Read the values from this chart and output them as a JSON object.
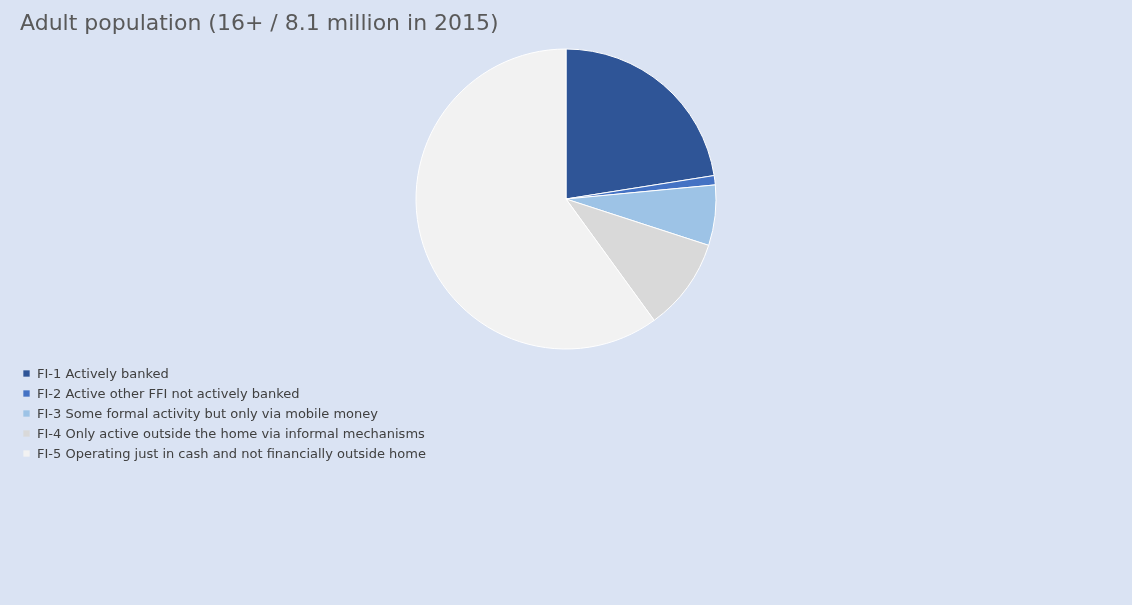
{
  "chart_data": {
    "type": "pie",
    "title": "Adult population (16+ / 8.1 million in 2015)",
    "categories": [
      "FI-1 Actively banked",
      "FI-2 Active other FFI not actively banked",
      "FI-3 Some formal activity but only via mobile money",
      "FI-4 Only active outside the home via informal mechanisms",
      "FI-5 Operating just in cash and not financially outside home"
    ],
    "values": [
      22.5,
      1,
      6.5,
      10,
      60
    ],
    "colors": [
      "#2f5597",
      "#4472c4",
      "#9dc3e6",
      "#d9d9d9",
      "#f2f2f2"
    ],
    "legend": "bottom"
  }
}
